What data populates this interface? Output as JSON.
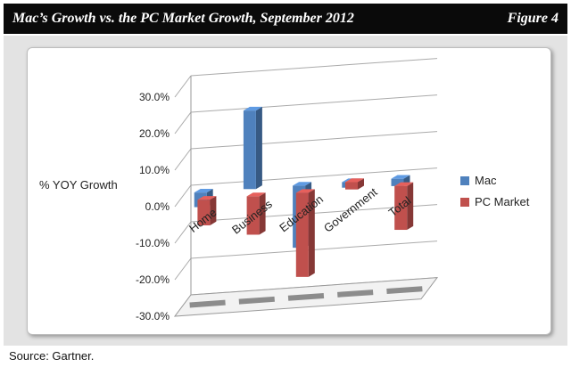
{
  "header": {
    "title": "Mac’s Growth vs. the PC Market Growth, September 2012",
    "figure_label": "Figure 4"
  },
  "source": "Source: Gartner.",
  "chart_data": {
    "type": "bar",
    "title": "",
    "categories": [
      "Home",
      "Business",
      "Education",
      "Government",
      "Total"
    ],
    "ylabel": "% YOY Growth",
    "ylim": [
      -30,
      30
    ],
    "yticks": [
      "30.0%",
      "20.0%",
      "10.0%",
      "0.0%",
      "-10.0%",
      "-20.0%",
      "-30.0%"
    ],
    "grid": true,
    "legend_position": "right",
    "series": [
      {
        "name": "Mac",
        "values": [
          -4,
          21.5,
          -17,
          -1.5,
          -2
        ],
        "color": "#4f81bd"
      },
      {
        "name": "PC Market",
        "values": [
          -7,
          -10.5,
          -23,
          2,
          -12
        ],
        "color": "#c0504d"
      }
    ]
  }
}
